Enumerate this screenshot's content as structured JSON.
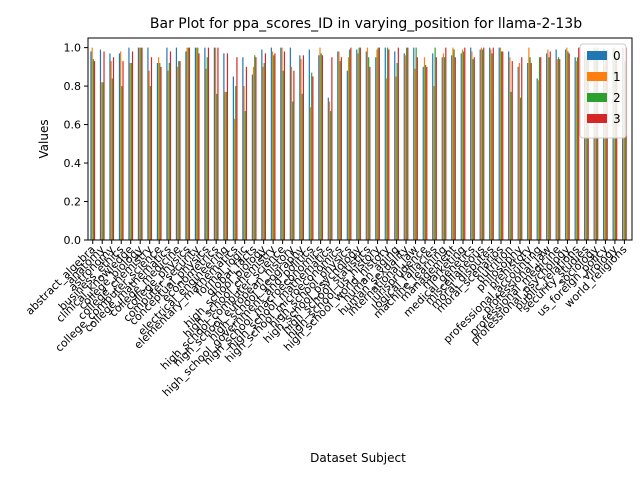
{
  "chart_data": {
    "type": "bar",
    "title": "Bar Plot for ppa_scores_ID in varying_position for llama-2-13b",
    "xlabel": "Dataset Subject",
    "ylabel": "Values",
    "ylim": [
      0,
      1.05
    ],
    "yticks": [
      0.0,
      0.2,
      0.4,
      0.6,
      0.8,
      1.0
    ],
    "ytick_labels": [
      "0.0",
      "0.2",
      "0.4",
      "0.6",
      "0.8",
      "1.0"
    ],
    "grid": false,
    "legend_position": "top-right",
    "colors": [
      "#1f77b4",
      "#ff7f0e",
      "#2ca02c",
      "#d62728"
    ],
    "categories": [
      "abstract_algebra",
      "anatomy",
      "astronomy",
      "business_ethics",
      "clinical_knowledge",
      "college_biology",
      "college_chemistry",
      "college_computer_science",
      "college_mathematics",
      "college_medicine",
      "college_physics",
      "computer_security",
      "conceptual_physics",
      "econometrics",
      "electrical_engineering",
      "elementary_mathematics",
      "formal_logic",
      "global_facts",
      "high_school_biology",
      "high_school_chemistry",
      "high_school_computer_science",
      "high_school_european_history",
      "high_school_geography",
      "high_school_government_and_politics",
      "high_school_macroeconomics",
      "high_school_mathematics",
      "high_school_microeconomics",
      "high_school_physics",
      "high_school_psychology",
      "high_school_statistics",
      "high_school_us_history",
      "high_school_world_history",
      "human_aging",
      "human_sexuality",
      "international_law",
      "jurisprudence",
      "logical_fallacies",
      "machine_learning",
      "management",
      "marketing",
      "medical_genetics",
      "miscellaneous",
      "moral_disputes",
      "moral_scenarios",
      "nutrition",
      "philosophy",
      "prehistory",
      "professional_accounting",
      "professional_law",
      "professional_medicine",
      "professional_psychology",
      "public_relations",
      "security_studies",
      "sociology",
      "us_foreign_policy",
      "virology",
      "world_religions"
    ],
    "series": [
      {
        "name": "0",
        "values": [
          0.98,
          0.99,
          0.97,
          0.97,
          1.0,
          1.0,
          1.0,
          0.92,
          1.0,
          1.0,
          0.98,
          1.0,
          1.0,
          1.0,
          0.97,
          0.85,
          0.95,
          0.86,
          0.99,
          1.0,
          1.0,
          1.0,
          0.96,
          0.99,
          0.96,
          0.74,
          0.98,
          0.88,
          0.99,
          0.98,
          0.95,
          1.0,
          0.98,
          0.97,
          1.0,
          0.9,
          0.97,
          0.95,
          0.96,
          0.97,
          1.0,
          0.99,
          1.0,
          1.0,
          0.98,
          0.9,
          0.92,
          0.84,
          0.97,
          0.99,
          0.99,
          0.95,
          0.98,
          1.0,
          1.0,
          1.0,
          1.0
        ]
      },
      {
        "name": "1",
        "values": [
          1.0,
          0.82,
          0.93,
          0.98,
          0.92,
          1.0,
          0.88,
          0.95,
          0.88,
          0.9,
          1.0,
          1.0,
          0.89,
          1.0,
          0.77,
          0.63,
          0.8,
          0.9,
          0.9,
          0.98,
          1.0,
          0.9,
          0.94,
          0.69,
          1.0,
          0.72,
          0.98,
          0.95,
          0.97,
          1.0,
          0.99,
          0.84,
          0.85,
          0.96,
          0.89,
          0.95,
          0.8,
          0.97,
          1.0,
          0.99,
          0.98,
          1.0,
          0.99,
          1.0,
          0.95,
          0.92,
          1.0,
          0.83,
          0.99,
          0.94,
          1.0,
          0.93,
          0.96,
          1.0,
          0.91,
          1.0,
          1.0
        ]
      },
      {
        "name": "2",
        "values": [
          0.94,
          0.82,
          0.84,
          0.8,
          0.92,
          1.0,
          0.8,
          0.92,
          0.92,
          0.93,
          1.0,
          1.0,
          0.95,
          0.76,
          0.77,
          0.8,
          0.67,
          0.96,
          0.92,
          0.96,
          0.88,
          0.72,
          0.76,
          0.87,
          0.97,
          0.67,
          0.93,
          0.99,
          1.0,
          0.95,
          1.0,
          1.0,
          0.92,
          1.0,
          1.0,
          0.91,
          1.0,
          0.95,
          0.99,
          0.98,
          0.94,
          0.99,
          0.97,
          0.98,
          0.77,
          0.74,
          0.95,
          0.95,
          0.95,
          0.95,
          0.98,
          0.95,
          0.96,
          0.99,
          0.96,
          0.98,
          0.93
        ]
      },
      {
        "name": "3",
        "values": [
          0.93,
          0.98,
          0.95,
          0.93,
          0.98,
          1.0,
          0.95,
          0.9,
          0.98,
          0.93,
          1.0,
          0.97,
          1.0,
          1.0,
          0.97,
          0.95,
          0.9,
          0.95,
          0.97,
          0.97,
          0.98,
          0.88,
          0.96,
          0.85,
          0.96,
          0.95,
          0.95,
          1.0,
          1.0,
          0.9,
          1.0,
          0.99,
          1.0,
          1.0,
          0.95,
          0.9,
          0.95,
          1.0,
          0.95,
          1.0,
          0.95,
          1.0,
          1.0,
          0.98,
          0.93,
          0.95,
          0.92,
          0.95,
          0.98,
          0.94,
          0.97,
          1.0,
          0.98,
          1.0,
          0.99,
          0.95,
          1.0
        ]
      }
    ]
  }
}
